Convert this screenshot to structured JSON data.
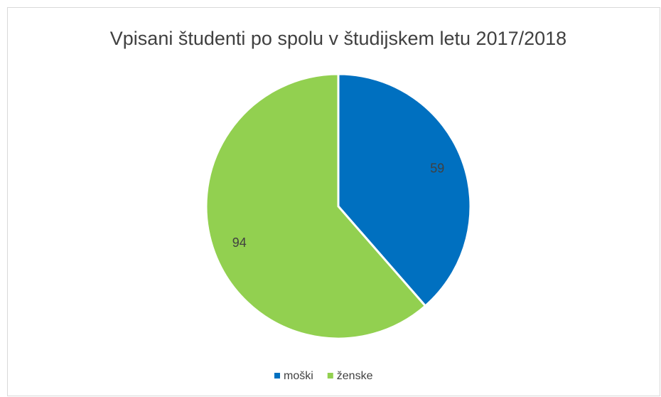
{
  "chart_data": {
    "type": "pie",
    "title": "Vpisani študenti po spolu v študijskem letu 2017/2018",
    "categories": [
      "moški",
      "ženske"
    ],
    "values": [
      59,
      94
    ],
    "colors": [
      "#0070c0",
      "#92d050"
    ],
    "legend": "bottom"
  }
}
